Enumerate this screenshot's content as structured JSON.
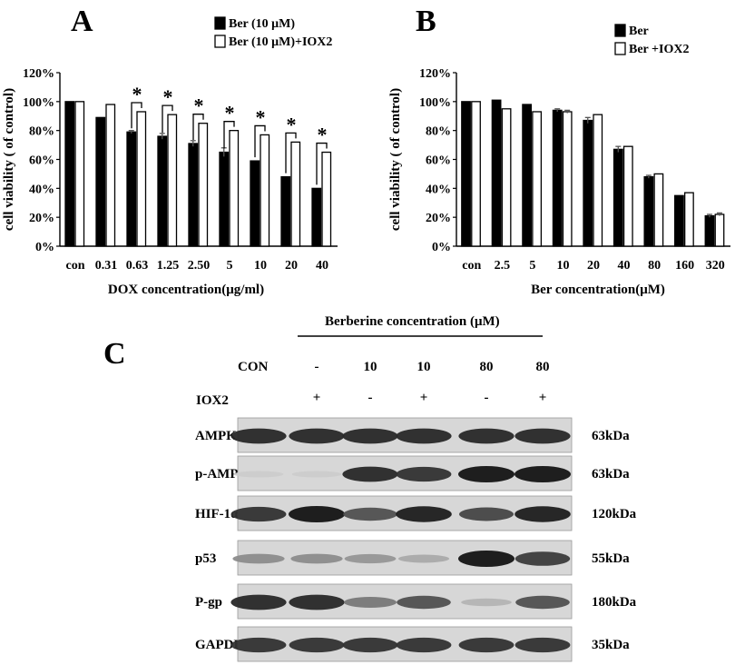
{
  "panels": {
    "a": {
      "letter": "A"
    },
    "b": {
      "letter": "B"
    },
    "c": {
      "letter": "C"
    }
  },
  "chart_data": [
    {
      "panel": "A",
      "type": "bar",
      "xlabel": "DOX concentration(μg/ml)",
      "ylabel": "cell viability ( of control)",
      "ylim": [
        0,
        120
      ],
      "yticks": [
        "0%",
        "20%",
        "40%",
        "60%",
        "80%",
        "100%",
        "120%"
      ],
      "grid": false,
      "legend_position": "top-right",
      "categories": [
        "con",
        "0.31",
        "0.63",
        "1.25",
        "2.50",
        "5",
        "10",
        "20",
        "40"
      ],
      "series": [
        {
          "name": "Ber (10 μM)",
          "color": "#000000",
          "values": [
            100,
            89,
            79,
            76,
            71,
            65,
            59,
            48,
            40
          ],
          "errors": [
            0,
            0,
            1,
            2,
            2,
            3,
            0,
            0,
            0
          ]
        },
        {
          "name": "Ber (10 μM)+IOX2",
          "color": "#ffffff",
          "values": [
            100,
            98,
            93,
            91,
            85,
            80,
            77,
            72,
            65
          ],
          "errors": [
            0,
            0,
            0,
            0,
            0,
            0,
            0,
            0,
            0
          ]
        }
      ],
      "significance": {
        "marker": "*",
        "categories": [
          "0.63",
          "1.25",
          "2.50",
          "5",
          "10",
          "20",
          "40"
        ]
      }
    },
    {
      "panel": "B",
      "type": "bar",
      "xlabel": "Ber concentration(μM)",
      "ylabel": "cell viability ( of control)",
      "ylim": [
        0,
        120
      ],
      "yticks": [
        "0%",
        "20%",
        "40%",
        "60%",
        "80%",
        "100%",
        "120%"
      ],
      "grid": false,
      "legend_position": "top-right",
      "categories": [
        "con",
        "2.5",
        "5",
        "10",
        "20",
        "40",
        "80",
        "160",
        "320"
      ],
      "series": [
        {
          "name": "Ber",
          "color": "#000000",
          "values": [
            100,
            101,
            98,
            94,
            87,
            67,
            48,
            35,
            21
          ],
          "errors": [
            0,
            0,
            0,
            1,
            2,
            2,
            1,
            0,
            1
          ]
        },
        {
          "name": "Ber +IOX2",
          "color": "#ffffff",
          "values": [
            100,
            95,
            93,
            93,
            91,
            69,
            50,
            37,
            22
          ],
          "errors": [
            0,
            0,
            0,
            1,
            0,
            0,
            0,
            0,
            1
          ]
        }
      ]
    }
  ],
  "blot": {
    "title": "Berberine concentration (μM)",
    "con_label": "CON",
    "iox_label": "IOX2",
    "concentrations": [
      "-",
      "10",
      "10",
      "80",
      "80"
    ],
    "iox2": [
      "+",
      "-",
      "+",
      "-",
      "+"
    ],
    "bands": [
      {
        "name": "AMPK",
        "size": "63kDa",
        "intensity": [
          0.9,
          0.9,
          0.9,
          0.9,
          0.9,
          0.9
        ]
      },
      {
        "name": "p-AMPK",
        "size": "63kDa",
        "intensity": [
          0.08,
          0.08,
          0.9,
          0.85,
          1.0,
          1.0
        ]
      },
      {
        "name": "HIF-1α",
        "size": "120kDa",
        "intensity": [
          0.85,
          1.0,
          0.7,
          0.95,
          0.75,
          0.95
        ]
      },
      {
        "name": "p53",
        "size": "55kDa",
        "intensity": [
          0.4,
          0.4,
          0.35,
          0.25,
          1.0,
          0.8
        ]
      },
      {
        "name": "P-gp",
        "size": "180kDa",
        "intensity": [
          0.9,
          0.9,
          0.5,
          0.7,
          0.2,
          0.7
        ]
      },
      {
        "name": "GAPDH",
        "size": "35kDa",
        "intensity": [
          0.85,
          0.85,
          0.85,
          0.85,
          0.85,
          0.85
        ]
      }
    ]
  }
}
